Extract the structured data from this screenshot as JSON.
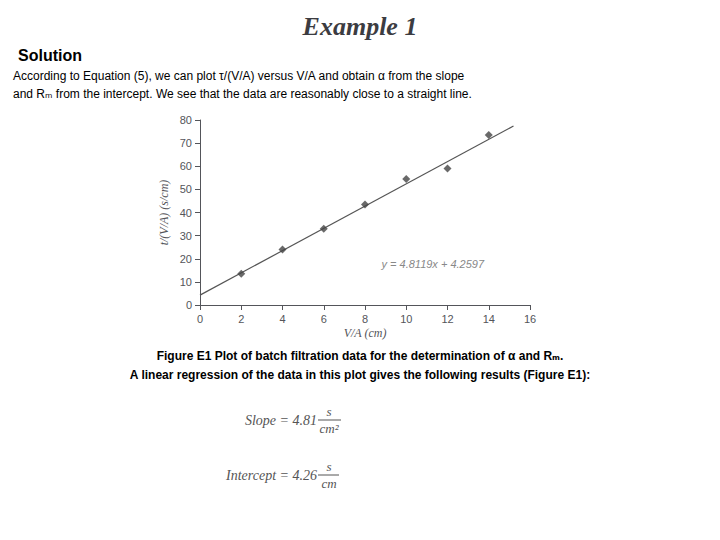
{
  "chart_data": {
    "type": "scatter",
    "title": "Example 1",
    "subtitle": "Solution",
    "annotations": [
      "According to Equation (5), we can plot τ/(V/A) versus V/A and obtain α from the slope",
      "and Rₘ from the intercept. We see that the data are reasonably close to a straight line.",
      "y = 4.8119x + 4.2597",
      "Figure E1 Plot of batch filtration data for the determination of α and Rₘ.",
      "A linear regression of the data in this plot gives the following results (Figure E1):",
      "Slope = 4.81",
      "s",
      "cm²",
      "Intercept = 4.26",
      "s",
      "cm"
    ],
    "xlabel": "V/A (cm)",
    "ylabel": "t/(V/A) (s/cm)",
    "series": [
      {
        "type": "scatter",
        "marker": "diamond",
        "color": "#444444",
        "x": [
          2,
          4,
          6,
          8,
          10,
          12,
          14
        ],
        "values": [
          13.5,
          24.0,
          33.0,
          43.5,
          54.5,
          59.0,
          73.5
        ]
      },
      {
        "type": "line",
        "color": "#555555",
        "x": [
          0,
          15.2
        ],
        "values": [
          4.2597,
          77.40058
        ]
      }
    ],
    "xlim": [
      0,
      16
    ],
    "ylim": [
      0,
      80
    ],
    "xticks": [
      0,
      2,
      4,
      6,
      8,
      10,
      12,
      14,
      16
    ],
    "yticks": [
      0,
      10,
      20,
      30,
      40,
      50,
      60,
      70,
      80
    ],
    "grid": false
  }
}
